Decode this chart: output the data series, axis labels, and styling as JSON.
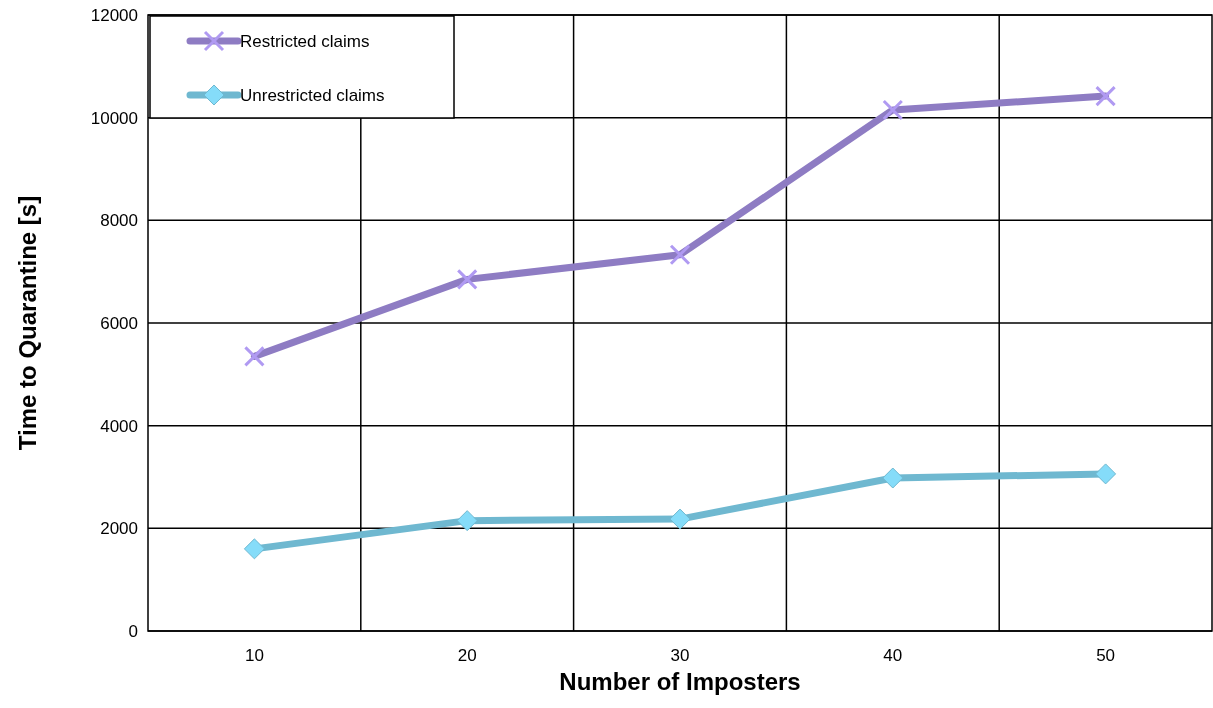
{
  "chart_data": {
    "type": "line",
    "xlabel": "Number of Imposters",
    "ylabel": "Time to Quarantine [s]",
    "categories": [
      "10",
      "20",
      "30",
      "40",
      "50"
    ],
    "series": [
      {
        "name": "Restricted claims",
        "color": "#8e7cc3",
        "marker": "cross",
        "values": [
          5350,
          6850,
          7330,
          10150,
          10420
        ]
      },
      {
        "name": "Unrestricted claims",
        "color": "#6fb8d0",
        "marker": "diamond",
        "values": [
          1600,
          2150,
          2180,
          2980,
          3060
        ]
      }
    ],
    "ylim": [
      0,
      12000
    ],
    "yticks": [
      0,
      2000,
      4000,
      6000,
      8000,
      10000,
      12000
    ],
    "grid": true,
    "legend": "top left"
  }
}
